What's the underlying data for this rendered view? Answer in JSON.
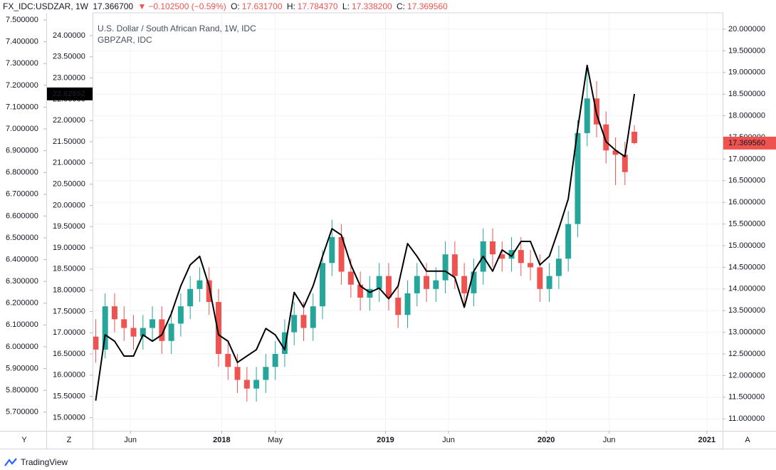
{
  "toolbar": {
    "symbol": "FX_IDC:USDZAR, 1W",
    "last": "17.366700",
    "arrow": "▼",
    "change": "−0.102500 (−0.59%)",
    "open_label": "O:",
    "open": "17.631700",
    "high_label": "H:",
    "high": "17.784370",
    "low_label": "L:",
    "low": "17.338200",
    "close_label": "C:",
    "close": "17.369560"
  },
  "controls": {
    "left": "Y",
    "middle": "Z",
    "right": "A"
  },
  "footer": {
    "brand": "TradingView"
  },
  "chart_data": {
    "type": "candlestick",
    "grid": true,
    "x": [
      0,
      3,
      6,
      9,
      12,
      15,
      18,
      21,
      24,
      27,
      30,
      33,
      36,
      39,
      42,
      45,
      48,
      51,
      54,
      57,
      60,
      63,
      66,
      69,
      72,
      75,
      78,
      81,
      84,
      87,
      90,
      93,
      96,
      99,
      102,
      105,
      108,
      111,
      114,
      117,
      120,
      123,
      126,
      129,
      132,
      135,
      138,
      141,
      144,
      147,
      150,
      153,
      156,
      159,
      162,
      165,
      168,
      171
    ],
    "xlim": [
      -1,
      199
    ],
    "xticks": [
      {
        "value": 11,
        "label": "Jun"
      },
      {
        "value": 40,
        "label": "2018"
      },
      {
        "value": 57,
        "label": "May"
      },
      {
        "value": 92,
        "label": "2019"
      },
      {
        "value": 112,
        "label": "Jun"
      },
      {
        "value": 143,
        "label": "2020"
      },
      {
        "value": 163,
        "label": "Jun"
      },
      {
        "value": 194,
        "label": "2021"
      }
    ],
    "ylim": [
      14.688,
      24.537
    ],
    "yticks": [
      {
        "value": 15,
        "label": "15.00000"
      },
      {
        "value": 15.5,
        "label": "15.50000"
      },
      {
        "value": 16,
        "label": "16.00000"
      },
      {
        "value": 16.5,
        "label": "16.50000"
      },
      {
        "value": 17,
        "label": "17.00000"
      },
      {
        "value": 17.5,
        "label": "17.50000"
      },
      {
        "value": 18,
        "label": "18.00000"
      },
      {
        "value": 18.5,
        "label": "18.50000"
      },
      {
        "value": 19,
        "label": "19.00000"
      },
      {
        "value": 19.5,
        "label": "19.50000"
      },
      {
        "value": 20,
        "label": "20.00000"
      },
      {
        "value": 20.5,
        "label": "20.50000"
      },
      {
        "value": 21,
        "label": "21.00000"
      },
      {
        "value": 21.5,
        "label": "21.50000"
      },
      {
        "value": 22,
        "label": "22.00000"
      },
      {
        "value": 22.5,
        "label": "22.50000"
      },
      {
        "value": 23,
        "label": "23.00000"
      },
      {
        "value": 23.5,
        "label": "23.50000"
      },
      {
        "value": 24,
        "label": "24.00000"
      }
    ],
    "y2lim": [
      10.724,
      20.378
    ],
    "y2ticks": [
      {
        "value": 11,
        "label": "11.000000"
      },
      {
        "value": 11.5,
        "label": "11.500000"
      },
      {
        "value": 12,
        "label": "12.000000"
      },
      {
        "value": 12.5,
        "label": "12.500000"
      },
      {
        "value": 13,
        "label": "13.000000"
      },
      {
        "value": 13.5,
        "label": "13.500000"
      },
      {
        "value": 14,
        "label": "14.000000"
      },
      {
        "value": 14.5,
        "label": "14.500000"
      },
      {
        "value": 15,
        "label": "15.000000"
      },
      {
        "value": 15.5,
        "label": "15.500000"
      },
      {
        "value": 16,
        "label": "16.000000"
      },
      {
        "value": 16.5,
        "label": "16.500000"
      },
      {
        "value": 17,
        "label": "17.000000"
      },
      {
        "value": 17.5,
        "label": "17.500000"
      },
      {
        "value": 18,
        "label": "18.000000"
      },
      {
        "value": 18.5,
        "label": "18.500000"
      },
      {
        "value": 19,
        "label": "19.000000"
      },
      {
        "value": 19.5,
        "label": "19.500000"
      },
      {
        "value": 20,
        "label": "20.000000"
      }
    ],
    "y3lim": [
      5.614,
      7.533
    ],
    "y3ticks": [
      {
        "value": 5.7,
        "label": "5.700000"
      },
      {
        "value": 5.8,
        "label": "5.800000"
      },
      {
        "value": 5.9,
        "label": "5.900000"
      },
      {
        "value": 6,
        "label": "6.000000"
      },
      {
        "value": 6.1,
        "label": "6.100000"
      },
      {
        "value": 6.2,
        "label": "6.200000"
      },
      {
        "value": 6.3,
        "label": "6.300000"
      },
      {
        "value": 6.4,
        "label": "6.400000"
      },
      {
        "value": 6.5,
        "label": "6.500000"
      },
      {
        "value": 6.6,
        "label": "6.600000"
      },
      {
        "value": 6.7,
        "label": "6.700000"
      },
      {
        "value": 6.8,
        "label": "6.800000"
      },
      {
        "value": 6.9,
        "label": "6.900000"
      },
      {
        "value": 7,
        "label": "7.000000"
      },
      {
        "value": 7.1,
        "label": "7.100000"
      },
      {
        "value": 7.2,
        "label": "7.200000"
      },
      {
        "value": 7.3,
        "label": "7.300000"
      },
      {
        "value": 7.4,
        "label": "7.400000"
      },
      {
        "value": 7.5,
        "label": "7.500000"
      }
    ],
    "series": [
      {
        "name": "U.S. Dollar / South African Rand, 1W, IDC",
        "type": "candlestick",
        "axis": "y2",
        "up_color": "#26a69a",
        "down_color": "#ef5350",
        "last_label": "17.369560",
        "open": [
          12.9,
          12.6,
          13.6,
          13.3,
          13.1,
          12.9,
          13.1,
          13.3,
          12.8,
          13.2,
          13.6,
          14.0,
          14.2,
          13.7,
          12.5,
          12.2,
          11.9,
          11.7,
          11.9,
          12.2,
          12.5,
          13.0,
          13.4,
          13.1,
          13.6,
          14.6,
          15.2,
          14.4,
          14.1,
          13.8,
          14.0,
          14.3,
          13.8,
          13.4,
          13.9,
          14.3,
          14.0,
          14.2,
          14.8,
          14.3,
          13.9,
          14.4,
          15.1,
          14.8,
          14.7,
          14.9,
          14.6,
          14.5,
          14.0,
          14.3,
          14.7,
          15.5,
          17.6,
          18.4,
          17.8,
          17.2,
          17.1,
          17.6317
        ],
        "high": [
          13.3,
          13.9,
          13.9,
          13.6,
          13.4,
          13.4,
          13.6,
          13.6,
          13.5,
          13.9,
          14.3,
          14.5,
          14.5,
          14.0,
          12.8,
          12.5,
          12.2,
          12.2,
          12.5,
          12.8,
          13.3,
          13.7,
          13.7,
          13.9,
          14.9,
          15.6,
          15.5,
          14.7,
          14.4,
          14.3,
          14.6,
          14.6,
          14.1,
          14.2,
          14.6,
          14.6,
          14.5,
          15.1,
          15.1,
          14.6,
          14.7,
          15.4,
          15.4,
          15.1,
          15.2,
          15.2,
          14.9,
          14.8,
          14.6,
          15.0,
          15.8,
          17.9,
          19.1,
          18.8,
          18.1,
          17.5,
          17.4,
          17.78437
        ],
        "low": [
          12.3,
          12.4,
          13.0,
          12.8,
          12.6,
          12.6,
          12.8,
          12.5,
          12.5,
          12.9,
          13.3,
          13.7,
          13.4,
          12.2,
          11.9,
          11.6,
          11.4,
          11.4,
          11.6,
          11.9,
          12.2,
          12.7,
          12.8,
          12.8,
          13.3,
          14.3,
          14.1,
          13.8,
          13.5,
          13.5,
          13.7,
          13.5,
          13.1,
          13.1,
          13.6,
          13.7,
          13.7,
          13.9,
          14.0,
          13.6,
          13.6,
          14.1,
          14.5,
          14.4,
          14.4,
          14.3,
          14.2,
          13.7,
          13.7,
          14.0,
          14.4,
          15.2,
          17.3,
          17.5,
          16.9,
          16.4,
          16.4,
          17.3382
        ],
        "close": [
          12.6,
          13.6,
          13.3,
          13.1,
          12.9,
          13.1,
          13.3,
          12.8,
          13.2,
          13.6,
          14.0,
          14.2,
          13.7,
          12.5,
          12.2,
          11.9,
          11.7,
          11.9,
          12.2,
          12.5,
          13.0,
          13.4,
          13.1,
          13.6,
          14.6,
          15.2,
          14.4,
          14.1,
          13.8,
          14.0,
          14.3,
          13.8,
          13.4,
          13.9,
          14.3,
          14.0,
          14.2,
          14.8,
          14.3,
          13.9,
          14.4,
          15.1,
          14.8,
          14.7,
          14.9,
          14.6,
          14.5,
          14.0,
          14.3,
          14.7,
          15.5,
          17.6,
          18.4,
          17.8,
          17.2,
          17.1,
          16.7,
          17.36956
        ]
      },
      {
        "name": "GBPZAR, IDC",
        "type": "line",
        "axis": "y",
        "color": "#000000",
        "values": [
          15.4,
          16.95,
          16.8,
          16.45,
          16.45,
          16.95,
          16.8,
          16.95,
          17.45,
          18.1,
          18.6,
          18.8,
          18.1,
          16.95,
          16.8,
          16.3,
          16.45,
          16.6,
          17.1,
          16.95,
          16.6,
          17.95,
          17.6,
          18.1,
          18.8,
          19.45,
          19.3,
          18.6,
          18.1,
          17.95,
          18.05,
          17.8,
          18.1,
          19.1,
          18.8,
          18.45,
          18.45,
          18.45,
          18.3,
          17.6,
          18.45,
          18.8,
          18.45,
          18.95,
          18.8,
          19.15,
          19.15,
          18.6,
          18.8,
          19.45,
          20.15,
          21.8,
          23.3,
          22.15,
          21.5,
          21.3,
          21.15,
          22.62652
        ]
      }
    ]
  }
}
